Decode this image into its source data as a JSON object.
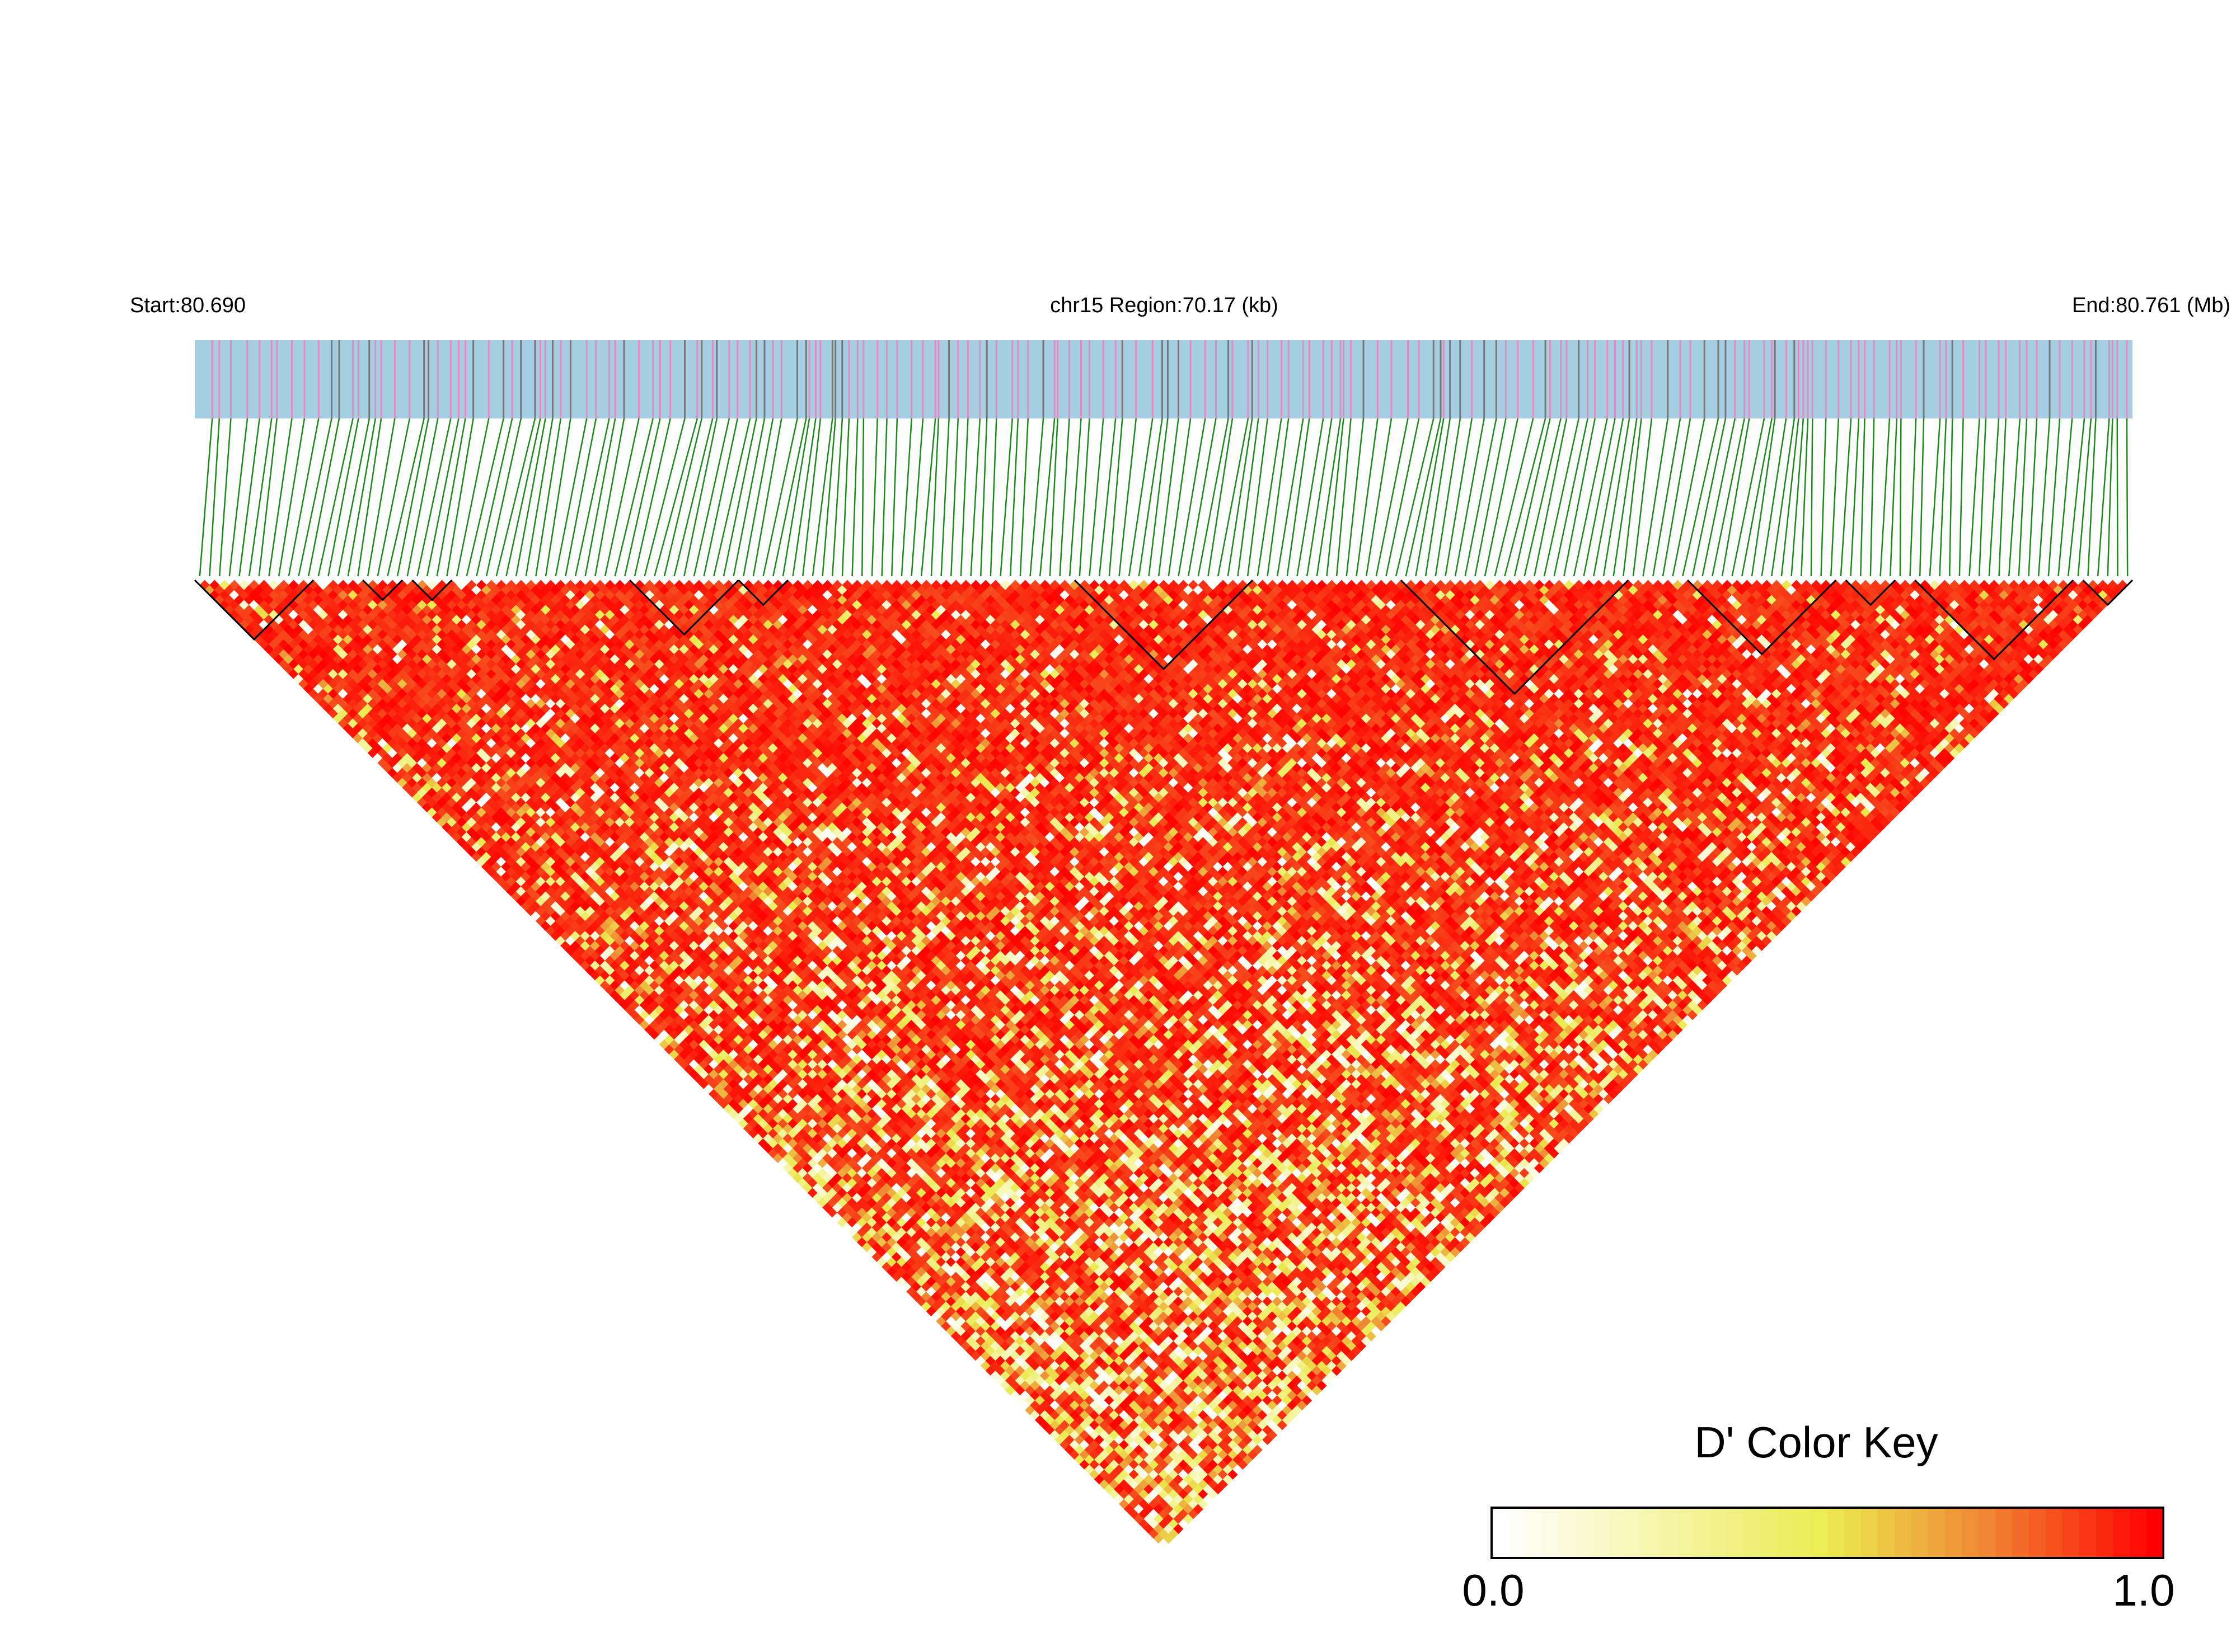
{
  "header": {
    "start_label": "Start:80.690",
    "region_label": "chr15 Region:70.17 (kb)",
    "end_label": "End:80.761 (Mb)"
  },
  "colors": {
    "track_bg": "#a6cee3",
    "variant_tick_pink": "#e78ac3",
    "variant_tick_gray": "#777777",
    "connector": "#1a8a1a",
    "ld_high": "#ff0000",
    "ld_mid": "#ee7733",
    "ld_low": "#ffffcc"
  },
  "chart_data": {
    "type": "heatmap",
    "title": "",
    "chromosome": "chr15",
    "region_start_mb": 80.69,
    "region_end_mb": 80.761,
    "region_length_kb": 70.17,
    "n_snps": 196,
    "metric": "D'",
    "value_range": [
      0.0,
      1.0
    ],
    "dominant_value_estimate": 0.9,
    "haplotype_blocks_snp_index_ranges": [
      [
        0,
        12
      ],
      [
        17,
        21
      ],
      [
        22,
        26
      ],
      [
        44,
        55
      ],
      [
        55,
        60
      ],
      [
        89,
        107
      ],
      [
        122,
        145
      ],
      [
        151,
        166
      ],
      [
        167,
        172
      ],
      [
        174,
        190
      ],
      [
        191,
        196
      ]
    ],
    "color_key": {
      "title": "D' Color Key",
      "min_label": "0.0",
      "max_label": "1.0"
    }
  }
}
